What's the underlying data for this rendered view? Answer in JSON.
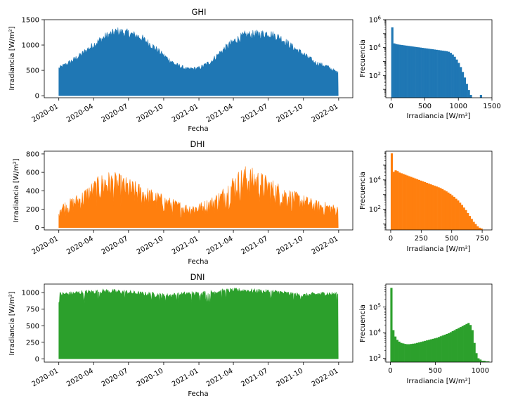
{
  "chart_data": [
    {
      "type": "area",
      "title": "GHI",
      "xlabel": "Fecha",
      "ylabel": "Irradiancia [W/m²]",
      "color": "#1f77b4",
      "ylim": [
        -40,
        1500
      ],
      "yticks": [
        0,
        500,
        1000,
        1500
      ],
      "xticks": [
        "2020-01",
        "2020-04",
        "2020-07",
        "2020-10",
        "2021-01",
        "2021-04",
        "2021-07",
        "2021-10",
        "2022-01"
      ],
      "x_range": [
        "2020-01-01",
        "2021-12-31"
      ],
      "series": [
        {
          "x": [
            "2020-01-01",
            "2020-02-01",
            "2020-03-01",
            "2020-04-01",
            "2020-05-01",
            "2020-06-01",
            "2020-07-01",
            "2020-08-01",
            "2020-09-01",
            "2020-10-01",
            "2020-11-01",
            "2020-12-01",
            "2021-01-01",
            "2021-02-01",
            "2021-03-01",
            "2021-04-01",
            "2021-05-01",
            "2021-06-01",
            "2021-07-01",
            "2021-08-01",
            "2021-09-01",
            "2021-10-01",
            "2021-11-01",
            "2021-12-01",
            "2021-12-31"
          ],
          "y": [
            580,
            720,
            880,
            1080,
            1250,
            1360,
            1320,
            1240,
            1060,
            850,
            660,
            560,
            580,
            720,
            940,
            1150,
            1280,
            1300,
            1320,
            1230,
            1040,
            880,
            700,
            620,
            480
          ]
        }
      ]
    },
    {
      "type": "bar",
      "subtype": "histogram",
      "xlabel": "Irradiancia [W/m²]",
      "ylabel": "Frecuencia",
      "color": "#1f77b4",
      "yscale": "log",
      "xlim": [
        -80,
        1500
      ],
      "xticks": [
        0,
        500,
        1000,
        1500
      ],
      "ylim_exp": [
        0.4,
        6
      ],
      "yticks_exp": [
        2,
        4,
        6
      ],
      "bin_width": 30,
      "bin_start": 0,
      "counts_log10": [
        5.45,
        4.3,
        4.25,
        4.22,
        4.2,
        4.18,
        4.16,
        4.14,
        4.12,
        4.1,
        4.08,
        4.06,
        4.04,
        4.02,
        4.0,
        3.98,
        3.96,
        3.94,
        3.92,
        3.9,
        3.88,
        3.86,
        3.84,
        3.82,
        3.8,
        3.78,
        3.76,
        3.74,
        3.7,
        3.62,
        3.5,
        3.34,
        3.14,
        2.9,
        2.6,
        2.25,
        1.85,
        1.4,
        0.95,
        0.6,
        0.4,
        0.4,
        0.4,
        0.4,
        0.6,
        0.4,
        0.4
      ]
    },
    {
      "type": "area",
      "title": "DHI",
      "xlabel": "Fecha",
      "ylabel": "Irradiancia [W/m²]",
      "color": "#ff7f0e",
      "ylim": [
        -25,
        830
      ],
      "yticks": [
        0,
        200,
        400,
        600,
        800
      ],
      "xticks": [
        "2020-01",
        "2020-04",
        "2020-07",
        "2020-10",
        "2021-01",
        "2021-04",
        "2021-07",
        "2021-10",
        "2022-01"
      ],
      "x_range": [
        "2020-01-01",
        "2021-12-31"
      ],
      "series": [
        {
          "x": [
            "2020-01-01",
            "2020-02-01",
            "2020-03-01",
            "2020-04-01",
            "2020-05-01",
            "2020-06-01",
            "2020-07-01",
            "2020-08-01",
            "2020-09-01",
            "2020-10-01",
            "2020-11-01",
            "2020-12-01",
            "2021-01-01",
            "2021-02-01",
            "2021-03-01",
            "2021-04-01",
            "2021-05-01",
            "2021-06-01",
            "2021-07-01",
            "2021-08-01",
            "2021-09-01",
            "2021-10-01",
            "2021-11-01",
            "2021-12-01",
            "2021-12-31"
          ],
          "y": [
            260,
            320,
            400,
            520,
            620,
            600,
            540,
            480,
            420,
            360,
            300,
            260,
            270,
            330,
            420,
            580,
            680,
            640,
            560,
            480,
            410,
            360,
            300,
            280,
            240
          ]
        }
      ]
    },
    {
      "type": "bar",
      "subtype": "histogram",
      "xlabel": "Irradiancia [W/m²]",
      "ylabel": "Frecuencia",
      "color": "#ff7f0e",
      "yscale": "log",
      "xlim": [
        -40,
        830
      ],
      "xticks": [
        0,
        250,
        500,
        750
      ],
      "ylim_exp": [
        0.6,
        5.95
      ],
      "yticks_exp": [
        2,
        4
      ],
      "bin_width": 16,
      "bin_start": 0,
      "counts_log10": [
        5.8,
        4.55,
        4.65,
        4.6,
        4.5,
        4.45,
        4.4,
        4.35,
        4.3,
        4.25,
        4.2,
        4.15,
        4.1,
        4.05,
        4.0,
        3.95,
        3.9,
        3.85,
        3.8,
        3.75,
        3.7,
        3.65,
        3.6,
        3.55,
        3.5,
        3.45,
        3.38,
        3.3,
        3.22,
        3.14,
        3.05,
        2.95,
        2.85,
        2.72,
        2.6,
        2.45,
        2.3,
        2.12,
        1.95,
        1.75,
        1.55,
        1.35,
        1.15,
        1.0,
        0.85,
        0.75,
        0.7,
        0.6,
        0.55,
        0.5
      ]
    },
    {
      "type": "area",
      "title": "DNI",
      "xlabel": "Fecha",
      "ylabel": "Irradiancia [W/m²]",
      "color": "#2ca02c",
      "ylim": [
        -50,
        1130
      ],
      "yticks": [
        0,
        250,
        500,
        750,
        1000
      ],
      "xticks": [
        "2020-01",
        "2020-04",
        "2020-07",
        "2020-10",
        "2021-01",
        "2021-04",
        "2021-07",
        "2021-10",
        "2022-01"
      ],
      "x_range": [
        "2020-01-01",
        "2021-12-31"
      ],
      "series": [
        {
          "x": [
            "2020-01-01",
            "2020-02-01",
            "2020-03-01",
            "2020-04-01",
            "2020-05-01",
            "2020-06-01",
            "2020-07-01",
            "2020-08-01",
            "2020-09-01",
            "2020-10-01",
            "2020-11-01",
            "2020-12-01",
            "2021-01-01",
            "2021-02-01",
            "2021-03-01",
            "2021-04-01",
            "2021-05-01",
            "2021-06-01",
            "2021-07-01",
            "2021-08-01",
            "2021-09-01",
            "2021-10-01",
            "2021-11-01",
            "2021-12-01",
            "2021-12-31"
          ],
          "y": [
            1010,
            1020,
            1040,
            1050,
            1060,
            1050,
            1040,
            1020,
            1010,
            990,
            1000,
            1020,
            1020,
            1040,
            1060,
            1070,
            1070,
            1060,
            1050,
            1040,
            1010,
            990,
            1010,
            1020,
            1010
          ]
        }
      ]
    },
    {
      "type": "bar",
      "subtype": "histogram",
      "xlabel": "Irradiancia [W/m²]",
      "ylabel": "Frecuencia",
      "color": "#2ca02c",
      "yscale": "log",
      "xlim": [
        -50,
        1130
      ],
      "xticks": [
        0,
        500,
        1000
      ],
      "ylim_exp": [
        2.85,
        5.9
      ],
      "yticks_exp": [
        3,
        4,
        5
      ],
      "bin_width": 22,
      "bin_start": 0,
      "counts_log10": [
        5.75,
        4.1,
        3.85,
        3.72,
        3.65,
        3.6,
        3.58,
        3.56,
        3.55,
        3.55,
        3.56,
        3.57,
        3.58,
        3.6,
        3.62,
        3.64,
        3.66,
        3.68,
        3.7,
        3.72,
        3.74,
        3.76,
        3.78,
        3.8,
        3.83,
        3.86,
        3.89,
        3.92,
        3.95,
        3.98,
        4.02,
        4.06,
        4.1,
        4.14,
        4.18,
        4.22,
        4.26,
        4.3,
        4.34,
        4.38,
        4.3,
        4.1,
        3.6,
        3.2,
        3.0,
        2.95,
        2.9,
        2.9,
        2.88,
        2.88
      ]
    }
  ]
}
